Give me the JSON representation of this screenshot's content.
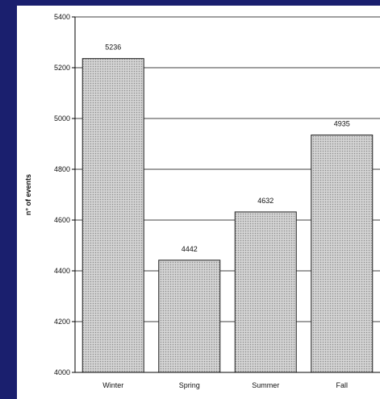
{
  "colors": {
    "background": "#1a1f6e",
    "panel": "#ffffff",
    "bar_fill": "#d4d4d4",
    "bar_dots": "#8c8c8c"
  },
  "chart_data": {
    "type": "bar",
    "title": "",
    "xlabel": "",
    "ylabel": "n° of events",
    "categories": [
      "Winter",
      "Spring",
      "Summer",
      "Fall"
    ],
    "values": [
      5236,
      4442,
      4632,
      4935
    ],
    "data_labels": [
      "5236",
      "4442",
      "4632",
      "4935"
    ],
    "ylim": [
      4000,
      5400
    ],
    "yticks": [
      4000,
      4200,
      4400,
      4600,
      4800,
      5000,
      5200,
      5400
    ],
    "grid": true,
    "legend": "none"
  }
}
